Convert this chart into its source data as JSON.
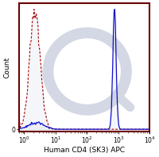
{
  "title": "",
  "xlabel": "Human CD4 (SK3) APC",
  "ylabel": "Count",
  "xlim": [
    0.7,
    10000
  ],
  "ylim": [
    -0.02,
    1.05
  ],
  "background_color": "#ffffff",
  "border_color": "#6B0000",
  "isotype_color": "#aa0000",
  "sample_color": "#1010cc",
  "fill_alpha": 0.18,
  "fill_color": "#c8cfe0",
  "watermark_color": "#d4d8e4",
  "xlabel_fontsize": 6.5,
  "ylabel_fontsize": 6.5,
  "tick_fontsize": 5.5,
  "figsize": [
    2.0,
    1.97
  ],
  "dpi": 100
}
